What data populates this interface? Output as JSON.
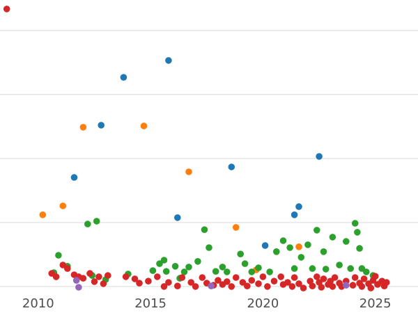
{
  "figure": {
    "background": "#ffffff",
    "grid_color": "#e1e1e1",
    "tick_color": "#4d4d4d"
  },
  "chart_data": {
    "type": "scatter",
    "title": "",
    "xlabel": "",
    "ylabel": "",
    "legend": "none",
    "grid": "horizontal",
    "x_ticks": [
      2010,
      2015,
      2020,
      2025
    ],
    "x_range": [
      2008.3,
      2026.9
    ],
    "y_range": [
      -2.2,
      111.9
    ],
    "y_gridlines": [
      0,
      25,
      50,
      75,
      100
    ],
    "marker_size_px": 9.6,
    "series": [
      {
        "name": "blue",
        "color": "#1f77b4",
        "points": [
          [
            2011.6,
            42.6
          ],
          [
            2012.8,
            63.0
          ],
          [
            2013.8,
            81.7
          ],
          [
            2015.8,
            88.3
          ],
          [
            2016.2,
            26.9
          ],
          [
            2018.6,
            46.7
          ],
          [
            2020.1,
            16.0
          ],
          [
            2021.4,
            28.0
          ],
          [
            2021.6,
            31.2
          ],
          [
            2022.5,
            50.8
          ]
        ]
      },
      {
        "name": "orange",
        "color": "#ff7f0e",
        "points": [
          [
            2010.2,
            28.0
          ],
          [
            2011.1,
            31.5
          ],
          [
            2012.0,
            62.2
          ],
          [
            2014.7,
            62.7
          ],
          [
            2016.7,
            44.8
          ],
          [
            2018.8,
            23.1
          ],
          [
            2019.7,
            6.5
          ],
          [
            2021.6,
            15.5
          ],
          [
            2025.2,
            1.3
          ]
        ]
      },
      {
        "name": "green",
        "color": "#2ca02c",
        "points": [
          [
            2010.7,
            5.4
          ],
          [
            2010.9,
            12.2
          ],
          [
            2011.3,
            7.9
          ],
          [
            2012.2,
            24.4
          ],
          [
            2012.4,
            4.3
          ],
          [
            2012.6,
            25.5
          ],
          [
            2013.0,
            2.7
          ],
          [
            2014.0,
            4.9
          ],
          [
            2015.1,
            6.2
          ],
          [
            2015.4,
            8.9
          ],
          [
            2015.6,
            10.3
          ],
          [
            2015.7,
            5.9
          ],
          [
            2016.1,
            7.9
          ],
          [
            2016.3,
            3.2
          ],
          [
            2016.5,
            5.7
          ],
          [
            2016.7,
            7.6
          ],
          [
            2017.1,
            9.8
          ],
          [
            2017.4,
            22.2
          ],
          [
            2017.6,
            15.2
          ],
          [
            2017.9,
            5.9
          ],
          [
            2018.2,
            7.6
          ],
          [
            2018.4,
            5.7
          ],
          [
            2019.0,
            12.7
          ],
          [
            2019.2,
            8.9
          ],
          [
            2019.5,
            5.7
          ],
          [
            2019.8,
            7.3
          ],
          [
            2020.3,
            5.7
          ],
          [
            2020.6,
            13.6
          ],
          [
            2020.9,
            17.9
          ],
          [
            2021.2,
            15.2
          ],
          [
            2021.4,
            7.0
          ],
          [
            2021.7,
            11.4
          ],
          [
            2022.0,
            16.3
          ],
          [
            2022.2,
            7.0
          ],
          [
            2022.4,
            22.0
          ],
          [
            2022.7,
            13.6
          ],
          [
            2022.8,
            6.8
          ],
          [
            2023.1,
            19.3
          ],
          [
            2023.4,
            8.4
          ],
          [
            2023.7,
            17.6
          ],
          [
            2023.9,
            7.0
          ],
          [
            2024.1,
            24.7
          ],
          [
            2024.2,
            21.2
          ],
          [
            2024.3,
            14.9
          ],
          [
            2024.4,
            7.0
          ],
          [
            2024.6,
            5.7
          ],
          [
            2024.9,
            4.3
          ]
        ]
      },
      {
        "name": "red",
        "color": "#d62728",
        "points": [
          [
            2008.6,
            108.4
          ],
          [
            2010.6,
            5.1
          ],
          [
            2010.8,
            3.8
          ],
          [
            2011.1,
            8.4
          ],
          [
            2011.3,
            7.0
          ],
          [
            2011.6,
            4.6
          ],
          [
            2011.8,
            3.8
          ],
          [
            2012.0,
            3.2
          ],
          [
            2012.3,
            5.1
          ],
          [
            2012.5,
            1.9
          ],
          [
            2012.7,
            3.8
          ],
          [
            2012.9,
            1.1
          ],
          [
            2013.1,
            4.3
          ],
          [
            2013.9,
            3.8
          ],
          [
            2014.3,
            3.0
          ],
          [
            2014.5,
            1.3
          ],
          [
            2014.9,
            2.1
          ],
          [
            2015.3,
            3.8
          ],
          [
            2015.6,
            0.0
          ],
          [
            2015.8,
            1.6
          ],
          [
            2016.2,
            0.2
          ],
          [
            2016.4,
            3.5
          ],
          [
            2016.8,
            1.6
          ],
          [
            2017.0,
            0.0
          ],
          [
            2017.3,
            3.5
          ],
          [
            2017.5,
            1.3
          ],
          [
            2017.8,
            0.5
          ],
          [
            2018.0,
            2.4
          ],
          [
            2018.2,
            0.8
          ],
          [
            2018.4,
            1.9
          ],
          [
            2018.6,
            0.0
          ],
          [
            2018.8,
            3.5
          ],
          [
            2019.1,
            1.6
          ],
          [
            2019.3,
            0.2
          ],
          [
            2019.5,
            2.4
          ],
          [
            2019.8,
            1.1
          ],
          [
            2020.0,
            3.8
          ],
          [
            2020.2,
            0.0
          ],
          [
            2020.5,
            2.1
          ],
          [
            2020.8,
            3.8
          ],
          [
            2020.9,
            0.8
          ],
          [
            2021.1,
            1.6
          ],
          [
            2021.3,
            0.0
          ],
          [
            2021.4,
            3.5
          ],
          [
            2021.6,
            1.1
          ],
          [
            2021.8,
            -0.6
          ],
          [
            2022.1,
            2.1
          ],
          [
            2022.2,
            0.2
          ],
          [
            2022.4,
            3.8
          ],
          [
            2022.5,
            1.6
          ],
          [
            2022.6,
            -0.3
          ],
          [
            2022.7,
            3.0
          ],
          [
            2022.9,
            0.8
          ],
          [
            2023.0,
            2.1
          ],
          [
            2023.1,
            0.0
          ],
          [
            2023.2,
            3.5
          ],
          [
            2023.4,
            1.3
          ],
          [
            2023.5,
            0.0
          ],
          [
            2023.7,
            2.1
          ],
          [
            2024.0,
            0.5
          ],
          [
            2024.1,
            3.5
          ],
          [
            2024.3,
            1.3
          ],
          [
            2024.4,
            0.0
          ],
          [
            2024.5,
            3.0
          ],
          [
            2024.7,
            1.1
          ],
          [
            2024.8,
            -0.6
          ],
          [
            2024.9,
            2.4
          ],
          [
            2025.0,
            4.0
          ],
          [
            2025.1,
            0.8
          ],
          [
            2025.3,
            2.1
          ],
          [
            2025.4,
            0.2
          ],
          [
            2025.5,
            1.6
          ]
        ]
      },
      {
        "name": "purple",
        "color": "#9467bd",
        "points": [
          [
            2011.7,
            2.4
          ],
          [
            2011.8,
            -0.3
          ],
          [
            2017.7,
            0.2
          ],
          [
            2023.7,
            0.5
          ]
        ]
      }
    ]
  }
}
